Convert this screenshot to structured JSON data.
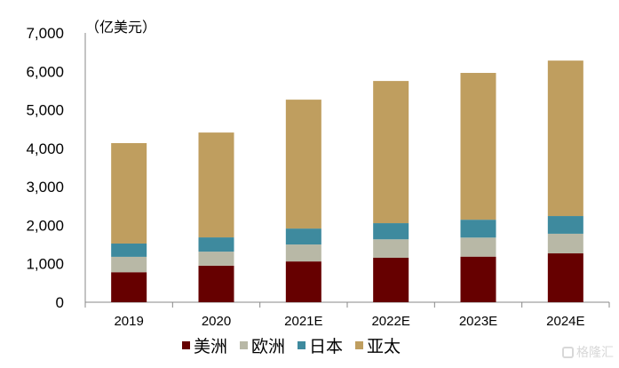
{
  "chart_data": {
    "type": "bar",
    "stacked": true,
    "title": "",
    "unit_label": "（亿美元）",
    "xlabel": "",
    "ylabel": "",
    "ylim": [
      0,
      7000
    ],
    "yticks": [
      0,
      1000,
      2000,
      3000,
      4000,
      5000,
      6000,
      7000
    ],
    "ytick_labels": [
      "0",
      "1,000",
      "2,000",
      "3,000",
      "4,000",
      "5,000",
      "6,000",
      "7,000"
    ],
    "grid": false,
    "legend_position": "bottom",
    "categories": [
      "2019",
      "2020",
      "2021E",
      "2022E",
      "2023E",
      "2024E"
    ],
    "series": [
      {
        "name": "美洲",
        "color": "#660000",
        "values": [
          780,
          950,
          1060,
          1155,
          1185,
          1270
        ]
      },
      {
        "name": "欧洲",
        "color": "#b8b8a6",
        "values": [
          400,
          365,
          440,
          480,
          495,
          510
        ]
      },
      {
        "name": "日本",
        "color": "#3e8a9e",
        "values": [
          345,
          370,
          415,
          420,
          465,
          460
        ]
      },
      {
        "name": "亚太",
        "color": "#bf9e5f",
        "values": [
          2610,
          2725,
          3350,
          3695,
          3815,
          4040
        ]
      }
    ]
  },
  "watermark": {
    "text": "格隆汇"
  }
}
